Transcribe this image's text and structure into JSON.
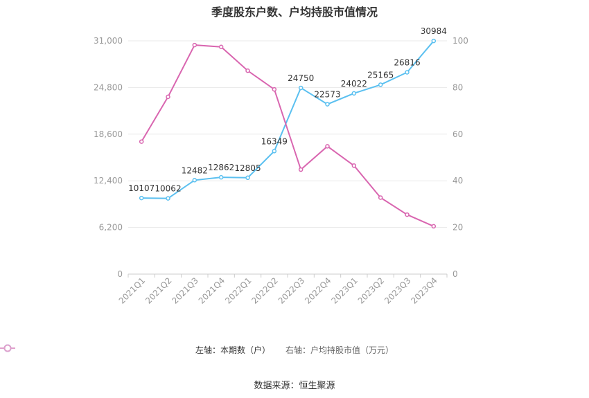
{
  "title": "季度股东户数、户均持股市值情况",
  "source": "数据来源：恒生聚源",
  "chart_data": {
    "type": "line",
    "categories": [
      "2021Q1",
      "2021Q2",
      "2021Q3",
      "2021Q4",
      "2022Q1",
      "2022Q2",
      "2022Q3",
      "2022Q4",
      "2023Q1",
      "2023Q2",
      "2023Q3",
      "2023Q4"
    ],
    "left_axis": {
      "ticks": [
        "0",
        "6,200",
        "12,400",
        "18,600",
        "24,800",
        "31,000"
      ],
      "ylim": [
        0,
        31000
      ]
    },
    "right_axis": {
      "ticks": [
        "0",
        "20",
        "40",
        "60",
        "80",
        "100"
      ],
      "ylim": [
        0,
        100
      ]
    },
    "grid": true,
    "legend_position": "bottom",
    "series": [
      {
        "name": "左轴：本期数（户）",
        "axis": "left",
        "color": "#5bc0f0",
        "values": [
          10107,
          10062,
          12482,
          12862,
          12805,
          16349,
          24750,
          22573,
          24022,
          25165,
          26816,
          30984
        ],
        "labels": [
          "10107",
          "10062",
          "12482",
          "12862",
          "12805",
          "16349",
          "24750",
          "22573",
          "24022",
          "25165",
          "26816",
          "30984"
        ]
      },
      {
        "name": "右轴：户均持股市值（万元）",
        "axis": "right",
        "color": "#d966b0",
        "values": [
          56.8,
          76.0,
          98.2,
          97.4,
          87.2,
          79.2,
          44.8,
          54.8,
          46.5,
          32.8,
          25.5,
          20.5
        ]
      }
    ]
  }
}
